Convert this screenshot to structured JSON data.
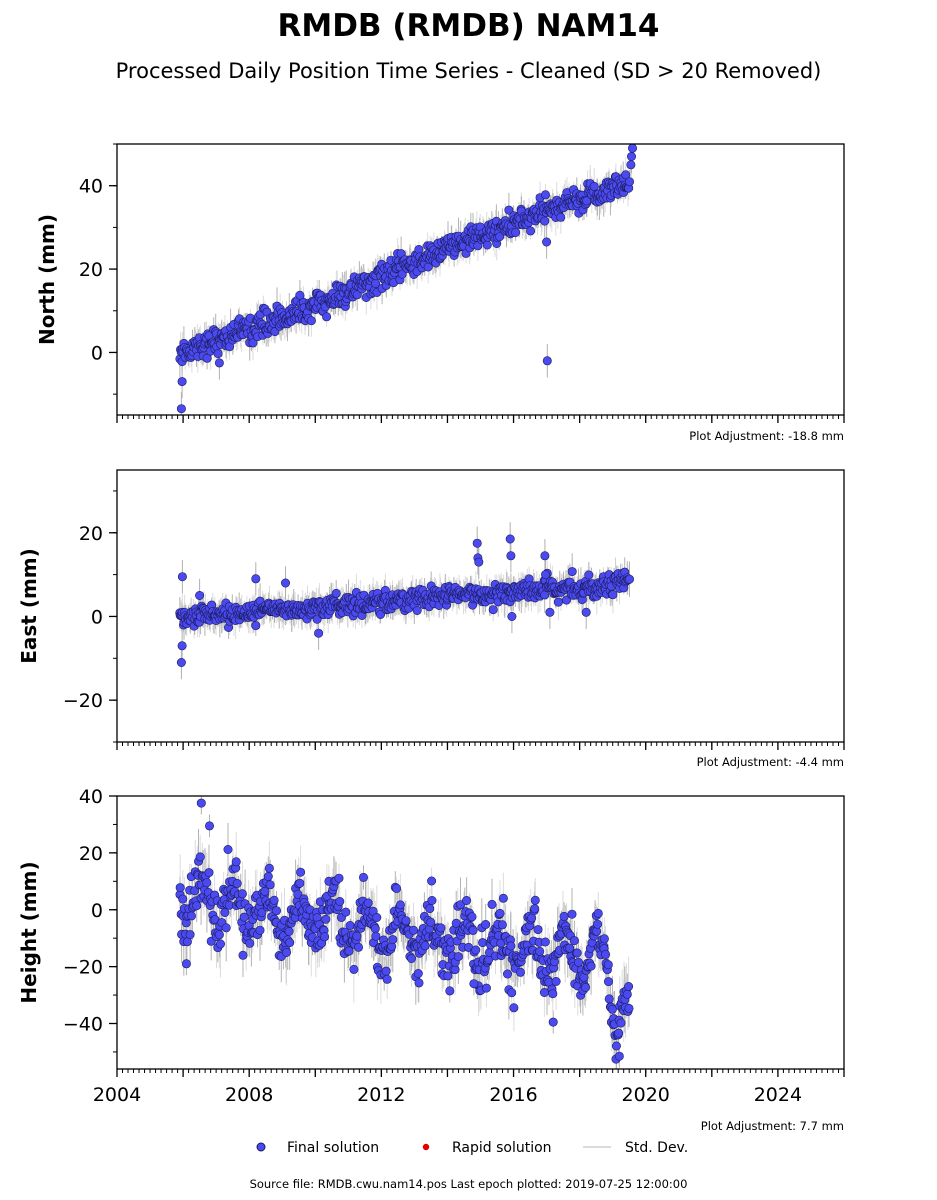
{
  "title": "RMDB (RMDB) NAM14",
  "subtitle": "Processed Daily Position Time Series - Cleaned (SD > 20 Removed)",
  "source_note": "Source file: RMDB.cwu.nam14.pos  Last epoch plotted: 2019-07-25 12:00:00",
  "legend": {
    "final": "Final solution",
    "rapid": "Rapid solution",
    "std": "Std. Dev."
  },
  "colors": {
    "final": "#4a4af0",
    "rapid": "#e00000",
    "std": "#b0b0b0"
  },
  "chart_data": [
    {
      "type": "scatter",
      "ylabel": "North (mm)",
      "adjustment": "Plot Adjustment: -18.8 mm",
      "xlim": [
        2004,
        2026
      ],
      "ylim": [
        -15,
        50
      ],
      "yticks": [
        0,
        20,
        40
      ],
      "ytick_labels": [
        "0",
        "20",
        "40"
      ],
      "xtick_labels": [],
      "trend": [
        [
          2005.9,
          0
        ],
        [
          2010,
          11
        ],
        [
          2014,
          25
        ],
        [
          2017.1,
          34
        ],
        [
          2019.5,
          41
        ]
      ],
      "spread": 1.5,
      "outliers": [
        [
          2005.95,
          -13.5
        ],
        [
          2005.97,
          -7
        ],
        [
          2007.1,
          -2.5
        ],
        [
          2017.0,
          26.5
        ],
        [
          2017.02,
          -2
        ],
        [
          2019.55,
          45
        ],
        [
          2019.57,
          47
        ],
        [
          2019.6,
          49
        ]
      ]
    },
    {
      "type": "scatter",
      "ylabel": "East (mm)",
      "adjustment": "Plot Adjustment: -4.4 mm",
      "xlim": [
        2004,
        2026
      ],
      "ylim": [
        -30,
        35
      ],
      "yticks": [
        -20,
        0,
        20
      ],
      "ytick_labels": [
        "−20",
        "0",
        "20"
      ],
      "xtick_labels": [],
      "trend": [
        [
          2005.9,
          0
        ],
        [
          2008,
          1
        ],
        [
          2012,
          3.5
        ],
        [
          2016,
          6
        ],
        [
          2018.5,
          7
        ],
        [
          2019.5,
          9.5
        ]
      ],
      "spread": 1.2,
      "outliers": [
        [
          2005.95,
          -11
        ],
        [
          2005.97,
          -7
        ],
        [
          2005.98,
          9.5
        ],
        [
          2006.5,
          5
        ],
        [
          2008.2,
          9
        ],
        [
          2009.1,
          8
        ],
        [
          2010.1,
          -4
        ],
        [
          2014.9,
          17.5
        ],
        [
          2014.92,
          14
        ],
        [
          2014.95,
          13
        ],
        [
          2015.9,
          18.5
        ],
        [
          2015.92,
          14.5
        ],
        [
          2016.95,
          14.5
        ],
        [
          2016.97,
          10
        ],
        [
          2017.1,
          1
        ],
        [
          2018.2,
          1
        ],
        [
          2015.95,
          0
        ]
      ]
    },
    {
      "type": "scatter",
      "ylabel": "Height (mm)",
      "adjustment": "Plot Adjustment: 7.7 mm",
      "xlim": [
        2004,
        2026
      ],
      "ylim": [
        -56,
        40
      ],
      "yticks": [
        -40,
        -20,
        0,
        20,
        40
      ],
      "ytick_labels": [
        "−40",
        "−20",
        "0",
        "20",
        "40"
      ],
      "xtick_labels": [
        "2004",
        "2008",
        "2012",
        "2016",
        "2020",
        "2024"
      ],
      "xtick_values": [
        2004,
        2008,
        2012,
        2016,
        2020,
        2024
      ],
      "trend": [
        [
          2005.9,
          4
        ],
        [
          2008,
          0
        ],
        [
          2012,
          -8
        ],
        [
          2016,
          -14
        ],
        [
          2018.8,
          -17
        ],
        [
          2019.1,
          -38
        ],
        [
          2019.5,
          -35
        ]
      ],
      "spread": 5,
      "seasonal": 8,
      "outliers": [
        [
          2006.55,
          37.5
        ],
        [
          2006.8,
          29.5
        ],
        [
          2006.1,
          -19
        ],
        [
          2014.8,
          -26
        ],
        [
          2017.2,
          -39.5
        ],
        [
          2019.2,
          -51.5
        ]
      ]
    }
  ]
}
